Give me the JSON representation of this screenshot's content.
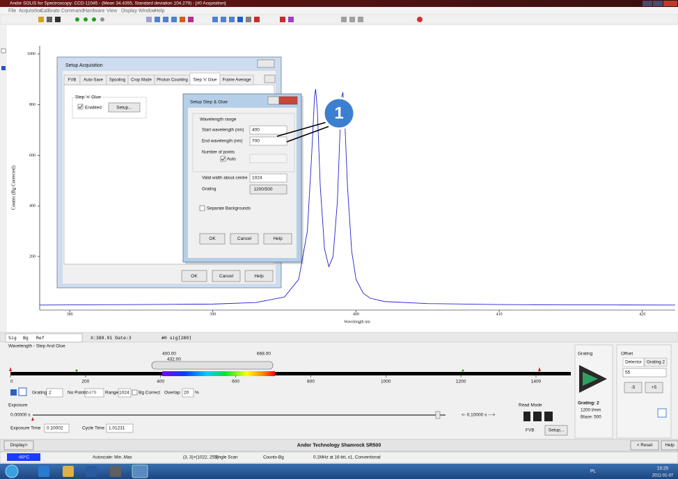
{
  "window": {
    "title": "Andor SOLIS for Spectroscopy: CCD-11045 - (Mean 34.4355, Standard deviation 104.279) - [#0  Acquisition]"
  },
  "menu": [
    "File",
    "Acquisition",
    "Calibrate",
    "Command",
    "Hardware",
    "View",
    "Display",
    "Window",
    "Help"
  ],
  "plot": {
    "type": "line",
    "x_label": "Wavelength nm",
    "y_label": "Counts (Bg Corrected)",
    "xlim": [
      377.9,
      422.3
    ],
    "ylim": [
      -11.7,
      1032.5
    ],
    "xticks": [
      380,
      390,
      400,
      410,
      420
    ],
    "yticks": [
      200,
      400,
      600,
      800,
      1000
    ],
    "spectrum": {
      "color": "#2020d0",
      "x": [
        377.9,
        385,
        390,
        393,
        395,
        396,
        396.6,
        396.9,
        397.1,
        397.18,
        397.3,
        397.5,
        397.8,
        398.1,
        398.4,
        398.7,
        398.9,
        399.0,
        399.08,
        399.2,
        399.4,
        399.7,
        400,
        400.5,
        401,
        402,
        405,
        410,
        415,
        422.3
      ],
      "values": [
        8,
        10,
        12,
        18,
        40,
        110,
        300,
        600,
        830,
        862,
        780,
        480,
        230,
        160,
        200,
        420,
        720,
        830,
        849,
        760,
        480,
        220,
        110,
        55,
        35,
        22,
        14,
        10,
        9,
        8
      ]
    }
  },
  "setup_acquisition": {
    "title": "Setup Acquisition",
    "tabs": [
      "FVB",
      "Auto-Save",
      "Spooling",
      "Crop Mode",
      "Photon Counting",
      "Step 'n' Glue",
      "Frame Average"
    ],
    "active_tab": 5,
    "group": "Step 'n' Glue",
    "enabled": "Enabled",
    "setup_button": "Setup...",
    "buttons": [
      "OK",
      "Cancel",
      "Help"
    ]
  },
  "step_glue": {
    "title": "Setup Step & Glue",
    "group": "Wavelength range",
    "start_label": "Start wavelength (nm)",
    "start": 400,
    "end_label": "End wavelength (nm)",
    "end": 700,
    "points_label": "Number of points",
    "auto": "Auto",
    "width_label": "Valid width about centre",
    "width": 1024,
    "grating_label": "Grating",
    "grating": "1200/500",
    "separate": "Separate Backgrounds",
    "buttons": [
      "OK",
      "Cancel",
      "Help"
    ]
  },
  "callout": {
    "label": 1
  },
  "data_tabs": [
    "Sig",
    "Bg",
    "Ref"
  ],
  "cursor": "X:389.91  Date:3",
  "frame": "#0  sig[280]",
  "wavelength_panel": {
    "title": "Wavelength - Step And Glue",
    "start": "400.00",
    "centre": "432.00",
    "end": "668.00",
    "scale": [
      0,
      200,
      400,
      600,
      800,
      1000,
      1200,
      1400
    ],
    "grating_label": "Grating",
    "grating": 2,
    "points_label": "No Points",
    "points": 5479,
    "range_label": "Range",
    "range": 1024,
    "bg_correct": "Bg Correct",
    "overlap_label": "Overlap",
    "overlap": 20,
    "overlap_unit": "%"
  },
  "exposure": {
    "title": "Exposure",
    "value": "0.00000 s",
    "max": "<- 0.10000 s --->",
    "exposure_time_label": "Exposure Time",
    "exposure_time": "0.10002",
    "cycle_time_label": "Cycle Time",
    "cycle_time": "1.01231"
  },
  "read_mode": {
    "title": "Read Mode",
    "mode": "FVB",
    "button": "Setup..."
  },
  "grating_panel": {
    "title": "Grating",
    "grating": "Grating: 2",
    "lines": "1200 l/mm",
    "blaze": "Blaze: 500"
  },
  "offset_panel": {
    "title": "Offset",
    "tabs": [
      "Detector",
      "Grating 2"
    ],
    "value": 55,
    "minus": "-5",
    "plus": "+5"
  },
  "bottom_bar": {
    "display": "Display>",
    "device": "Andor Technology Shamrock SR500",
    "reset": "< Reset",
    "help": "Help"
  },
  "status": [
    "-60°C",
    "Autoscale: Min..Max",
    "(3, 3)>(1022, 253)",
    "Single Scan",
    "Counts-Bg",
    "0.1MHz at 16-bit, x1, Conventional"
  ],
  "taskbar": {
    "lang": "PL",
    "time": "15:25",
    "date": "2011-01-07"
  }
}
